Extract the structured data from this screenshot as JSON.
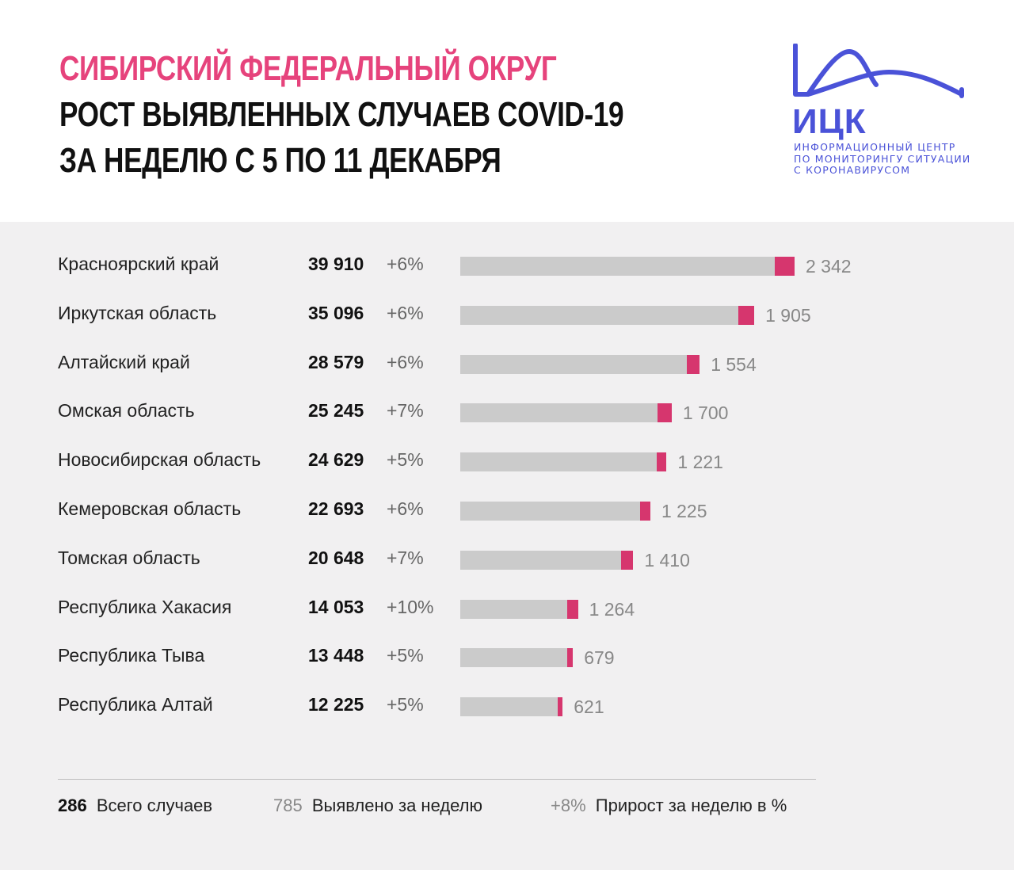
{
  "header": {
    "title_line1": "СИБИРСКИЙ ФЕДЕРАЛЬНЫЙ ОКРУГ",
    "title_line2": "РОСТ ВЫЯВЛЕННЫХ СЛУЧАЕВ COVID-19",
    "title_line3": "ЗА НЕДЕЛЮ С 5 ПО 11 ДЕКАБРЯ"
  },
  "logo": {
    "abbr": "ИЦК",
    "line1": "ИНФОРМАЦИОННЫЙ ЦЕНТР",
    "line2": "ПО МОНИТОРИНГУ СИТУАЦИИ",
    "line3": "С КОРОНАВИРУСОМ",
    "color": "#4a52d8"
  },
  "colors": {
    "title_accent": "#e6437c",
    "bar_base": "#cbcbcb",
    "bar_increment": "#d6366e",
    "panel_bg": "#f1f0f1"
  },
  "chart_data": {
    "type": "bar",
    "orientation": "horizontal",
    "stacked": true,
    "categories": [
      "Красноярский край",
      "Иркутская область",
      "Алтайский край",
      "Омская область",
      "Новосибирская область",
      "Кемеровская область",
      "Томская область",
      "Республика Хакасия",
      "Республика Тыва",
      "Республика Алтай"
    ],
    "totals": [
      39910,
      35096,
      28579,
      25245,
      24629,
      22693,
      20648,
      14053,
      13448,
      12225
    ],
    "totals_labels": [
      "39 910",
      "35 096",
      "28 579",
      "25 245",
      "24 629",
      "22 693",
      "20 648",
      "14 053",
      "13 448",
      "12 225"
    ],
    "weekly_new": [
      2342,
      1905,
      1554,
      1700,
      1221,
      1225,
      1410,
      1264,
      679,
      621
    ],
    "weekly_new_labels": [
      "2 342",
      "1 905",
      "1 554",
      "1 700",
      "1 221",
      "1 225",
      "1 410",
      "1 264",
      "679",
      "621"
    ],
    "growth_pct": [
      "+6%",
      "+6%",
      "+6%",
      "+7%",
      "+5%",
      "+6%",
      "+7%",
      "+10%",
      "+5%",
      "+5%"
    ],
    "xlim": [
      0,
      39910
    ],
    "title": "",
    "xlabel": "",
    "ylabel": "",
    "grid": false
  },
  "legend": {
    "total_example": "286",
    "total_label": "Всего случаев",
    "new_example": "785",
    "new_label": "Выявлено за неделю",
    "growth_example": "+8%",
    "growth_label": "Прирост за неделю в %"
  }
}
